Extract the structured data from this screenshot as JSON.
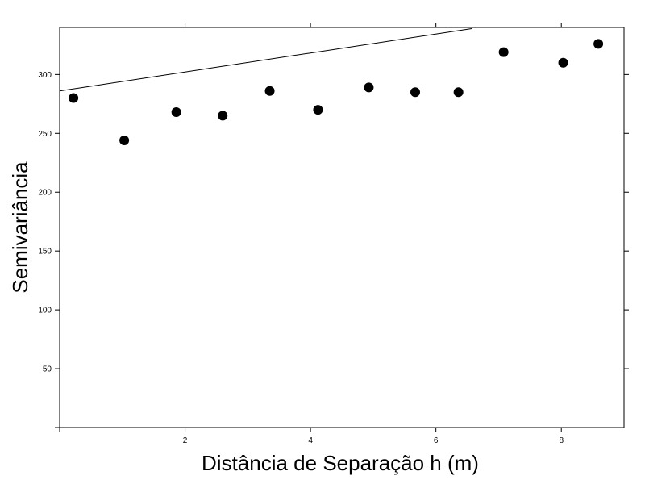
{
  "chart_data": {
    "type": "scatter",
    "title": "",
    "xlabel": "Distância de Separação h (m)",
    "ylabel": "Semivariância",
    "xlim": [
      0,
      9
    ],
    "ylim": [
      0,
      340
    ],
    "grid": false,
    "legend": "none",
    "x_ticks": [
      2,
      4,
      6,
      8
    ],
    "x_tick_labels": [
      "2",
      "4",
      "6",
      "8"
    ],
    "y_ticks": [
      50,
      100,
      150,
      200,
      250,
      300
    ],
    "y_tick_labels": [
      "50",
      "100",
      "150",
      "200",
      "250",
      "300"
    ],
    "points": {
      "x": [
        0.22,
        1.03,
        1.86,
        2.6,
        3.35,
        4.12,
        4.93,
        5.67,
        6.36,
        7.08,
        8.03,
        8.59
      ],
      "y": [
        280,
        244,
        268,
        265,
        286,
        270,
        289,
        285,
        285,
        319,
        310,
        326
      ]
    },
    "fitted_line": {
      "x": [
        0,
        6.57
      ],
      "y": [
        286,
        339
      ]
    },
    "colors": {
      "points": "#000000",
      "line": "#000000",
      "axes": "#000000"
    }
  }
}
